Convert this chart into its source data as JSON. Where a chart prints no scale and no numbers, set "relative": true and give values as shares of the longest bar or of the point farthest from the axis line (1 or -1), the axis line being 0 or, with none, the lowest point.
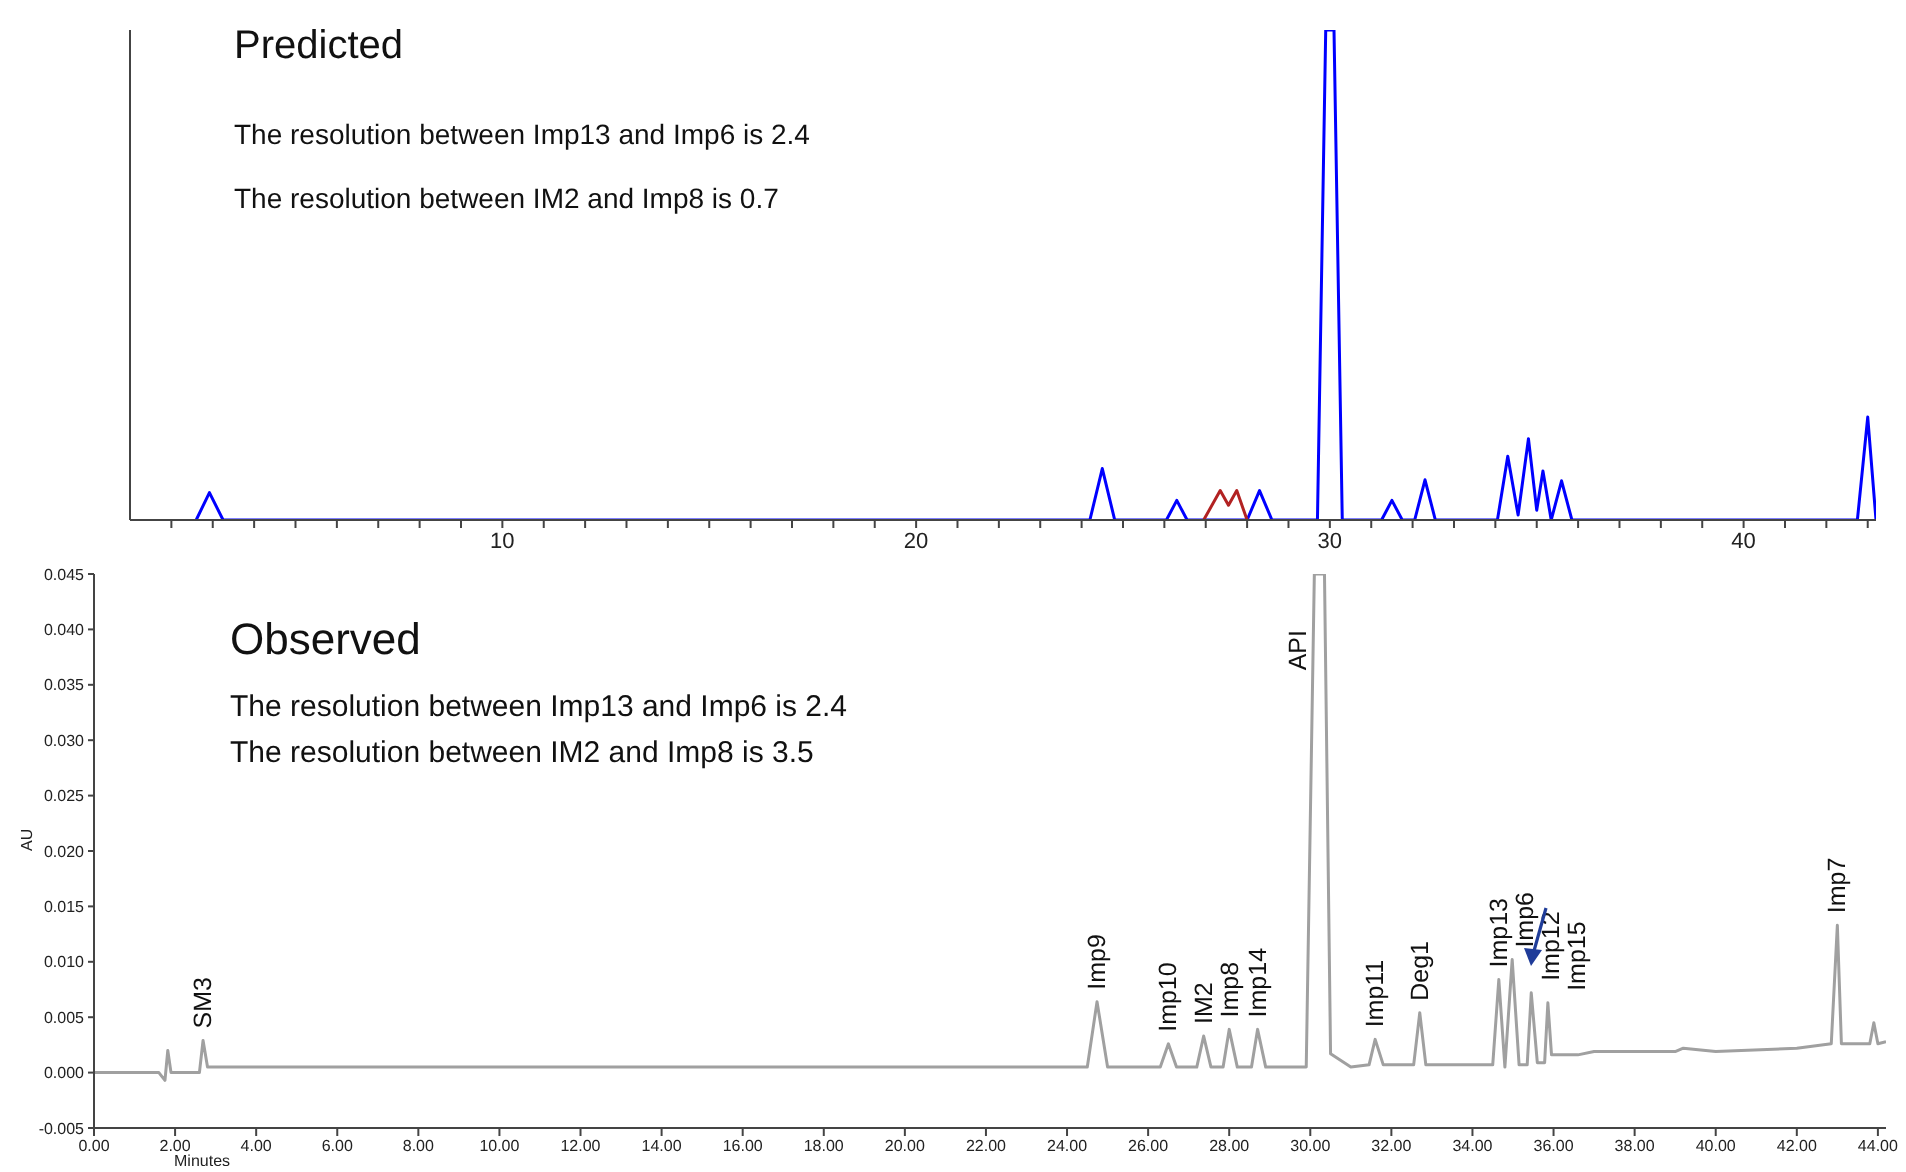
{
  "chart_data": [
    {
      "type": "line",
      "title": "Predicted",
      "relative": true,
      "xlim": [
        1,
        43.2
      ],
      "xticks": [
        {
          "value": 2,
          "label": null
        },
        {
          "value": 3,
          "label": null
        },
        {
          "value": 4,
          "label": null
        },
        {
          "value": 5,
          "label": null
        },
        {
          "value": 6,
          "label": null
        },
        {
          "value": 7,
          "label": null
        },
        {
          "value": 8,
          "label": null
        },
        {
          "value": 9,
          "label": null
        },
        10,
        {
          "value": 11,
          "label": null
        },
        {
          "value": 12,
          "label": null
        },
        {
          "value": 13,
          "label": null
        },
        {
          "value": 14,
          "label": null
        },
        {
          "value": 15,
          "label": null
        },
        {
          "value": 16,
          "label": null
        },
        {
          "value": 17,
          "label": null
        },
        {
          "value": 18,
          "label": null
        },
        {
          "value": 19,
          "label": null
        },
        20,
        {
          "value": 21,
          "label": null
        },
        {
          "value": 22,
          "label": null
        },
        {
          "value": 23,
          "label": null
        },
        {
          "value": 24,
          "label": null
        },
        {
          "value": 25,
          "label": null
        },
        {
          "value": 26,
          "label": null
        },
        {
          "value": 27,
          "label": null
        },
        {
          "value": 28,
          "label": null
        },
        {
          "value": 29,
          "label": null
        },
        30,
        {
          "value": 31,
          "label": null
        },
        {
          "value": 32,
          "label": null
        },
        {
          "value": 33,
          "label": null
        },
        {
          "value": 34,
          "label": null
        },
        {
          "value": 35,
          "label": null
        },
        {
          "value": 36,
          "label": null
        },
        {
          "value": 37,
          "label": null
        },
        {
          "value": 38,
          "label": null
        },
        {
          "value": 39,
          "label": null
        },
        40,
        {
          "value": 41,
          "label": null
        },
        {
          "value": 42,
          "label": null
        },
        {
          "value": 43,
          "label": null
        }
      ],
      "annotations": [
        "The resolution between Imp13 and Imp6 is 2.4",
        "The resolution between IM2 and Imp8 is 0.7"
      ],
      "series": [
        {
          "color": "#0000ff",
          "x": [
            2.6,
            2.92,
            3.25,
            24.2,
            24.5,
            24.8,
            26.05,
            26.3,
            26.55,
            26.95,
            28.0,
            28.3,
            28.6,
            29.7,
            29.9,
            30.1,
            30.3,
            31.25,
            31.5,
            31.75,
            32.05,
            32.3,
            32.55,
            34.05,
            34.3,
            34.55,
            34.8,
            35.0,
            35.15,
            35.35,
            35.6,
            35.85,
            42.75,
            43.0,
            43.2
          ],
          "values": [
            0,
            0.056,
            0,
            0,
            0.105,
            0,
            0,
            0.04,
            0,
            0,
            0,
            0.06,
            0,
            0,
            1,
            1,
            0,
            0,
            0.04,
            0,
            0,
            0.082,
            0,
            0,
            0.13,
            0.01,
            0.166,
            0.02,
            0.1,
            0,
            0.08,
            0,
            0,
            0.21,
            0
          ]
        },
        {
          "color": "#b22222",
          "x": [
            26.95,
            27.35,
            27.55,
            27.75,
            28.0
          ],
          "values": [
            0,
            0.06,
            0.03,
            0.06,
            0
          ]
        }
      ]
    },
    {
      "type": "line",
      "title": "Observed",
      "xlabel": "Minutes",
      "ylabel": "AU",
      "xlim": [
        0,
        44.2
      ],
      "ylim": [
        -0.005,
        0.045
      ],
      "xticks": [
        {
          "value": 0,
          "label": "0.00"
        },
        {
          "value": 2,
          "label": "2.00"
        },
        {
          "value": 4,
          "label": "4.00"
        },
        {
          "value": 6,
          "label": "6.00"
        },
        {
          "value": 8,
          "label": "8.00"
        },
        {
          "value": 10,
          "label": "10.00"
        },
        {
          "value": 12,
          "label": "12.00"
        },
        {
          "value": 14,
          "label": "14.00"
        },
        {
          "value": 16,
          "label": "16.00"
        },
        {
          "value": 18,
          "label": "18.00"
        },
        {
          "value": 20,
          "label": "20.00"
        },
        {
          "value": 22,
          "label": "22.00"
        },
        {
          "value": 24,
          "label": "24.00"
        },
        {
          "value": 26,
          "label": "26.00"
        },
        {
          "value": 28,
          "label": "28.00"
        },
        {
          "value": 30,
          "label": "30.00"
        },
        {
          "value": 32,
          "label": "32.00"
        },
        {
          "value": 34,
          "label": "34.00"
        },
        {
          "value": 36,
          "label": "36.00"
        },
        {
          "value": 38,
          "label": "38.00"
        },
        {
          "value": 40,
          "label": "40.00"
        },
        {
          "value": 42,
          "label": "42.00"
        },
        {
          "value": 44,
          "label": "44.00"
        }
      ],
      "yticks": [
        {
          "value": -0.005,
          "label": "-0.005"
        },
        {
          "value": 0,
          "label": "0.000"
        },
        {
          "value": 0.005,
          "label": "0.005"
        },
        {
          "value": 0.01,
          "label": "0.010"
        },
        {
          "value": 0.015,
          "label": "0.015"
        },
        {
          "value": 0.02,
          "label": "0.020"
        },
        {
          "value": 0.025,
          "label": "0.025"
        },
        {
          "value": 0.03,
          "label": "0.030"
        },
        {
          "value": 0.035,
          "label": "0.035"
        },
        {
          "value": 0.04,
          "label": "0.040"
        },
        {
          "value": 0.045,
          "label": "0.045"
        }
      ],
      "annotations": [
        "The resolution between Imp13 and Imp6 is 2.4",
        "The resolution between IM2 and Imp8 is 3.5",
        {
          "text": "SM3",
          "x": 2.69,
          "y": 0.0029
        },
        {
          "text": "Imp9",
          "x": 24.74,
          "y": 0.0064
        },
        {
          "text": "Imp10",
          "x": 26.5,
          "y": 0.0026
        },
        {
          "text": "IM2",
          "x": 27.37,
          "y": 0.0033
        },
        {
          "text": "Imp8",
          "x": 28.0,
          "y": 0.0039
        },
        {
          "text": "Imp14",
          "x": 28.7,
          "y": 0.0039
        },
        {
          "text": "API",
          "x": 30.1,
          "y": 0.045
        },
        {
          "text": "Imp11",
          "x": 31.6,
          "y": 0.003
        },
        {
          "text": "Deg1",
          "x": 32.7,
          "y": 0.0054
        },
        {
          "text": "Imp13",
          "x": 34.65,
          "y": 0.0084
        },
        {
          "text": "Imp6",
          "x": 34.98,
          "y": 0.0102
        },
        {
          "text": "Imp12",
          "x": 35.45,
          "y": 0.0072
        },
        {
          "text": "Imp15",
          "x": 35.86,
          "y": 0.0063
        },
        {
          "text": "Imp7",
          "x": 43.0,
          "y": 0.0133
        }
      ],
      "series": [
        {
          "color": "#a0a0a0",
          "x": [
            0,
            1.6,
            1.75,
            1.82,
            1.9,
            2.6,
            2.69,
            2.8,
            24.5,
            24.74,
            25.0,
            26.3,
            26.5,
            26.7,
            27.2,
            27.37,
            27.55,
            27.85,
            28.0,
            28.2,
            28.55,
            28.7,
            28.9,
            29.9,
            30.1,
            30.35,
            30.5,
            31.0,
            31.45,
            31.6,
            31.8,
            32.55,
            32.7,
            32.85,
            34.5,
            34.65,
            34.8,
            34.98,
            35.15,
            35.35,
            35.45,
            35.6,
            35.78,
            35.86,
            35.95,
            36.6,
            37.0,
            39.0,
            39.2,
            40.0,
            42.0,
            42.85,
            43.0,
            43.1,
            43.8,
            43.9,
            44.0,
            44.2
          ],
          "values": [
            0,
            0,
            -0.0007,
            0.002,
            0,
            0,
            0.0029,
            0.0005,
            0.0005,
            0.0064,
            0.0005,
            0.0005,
            0.0026,
            0.0005,
            0.0005,
            0.0033,
            0.0005,
            0.0005,
            0.0039,
            0.0005,
            0.0005,
            0.0039,
            0.0005,
            0.0005,
            0.045,
            0.045,
            0.0017,
            0.0005,
            0.0007,
            0.003,
            0.0007,
            0.0007,
            0.0054,
            0.0007,
            0.0007,
            0.0084,
            0.0005,
            0.0102,
            0.0007,
            0.0007,
            0.0072,
            0.0009,
            0.0009,
            0.0063,
            0.0016,
            0.0016,
            0.0019,
            0.0019,
            0.0022,
            0.0019,
            0.0022,
            0.0026,
            0.0133,
            0.0026,
            0.0026,
            0.0045,
            0.0026,
            0.0028
          ]
        }
      ]
    }
  ]
}
